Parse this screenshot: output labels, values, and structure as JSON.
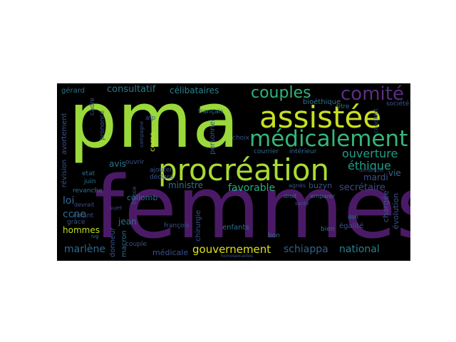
{
  "wordcloud": {
    "background": "#000000",
    "words": [
      {
        "text": "pma",
        "color": "#9ad93a"
      },
      {
        "text": "femmes",
        "color": "#4b1a66"
      },
      {
        "text": "procréation",
        "color": "#a9db33"
      },
      {
        "text": "assistée",
        "color": "#c8e020"
      },
      {
        "text": "médicalement",
        "color": "#35b779"
      },
      {
        "text": "comité",
        "color": "#5a2f7f"
      },
      {
        "text": "couples",
        "color": "#2fb47c"
      },
      {
        "text": "ouverture",
        "color": "#1f9e89"
      },
      {
        "text": "éthique",
        "color": "#1f9e89"
      },
      {
        "text": "schiappa",
        "color": "#34618d"
      },
      {
        "text": "national",
        "color": "#26828e"
      },
      {
        "text": "gouvernement",
        "color": "#dce319"
      },
      {
        "text": "favorable",
        "color": "#26ad81"
      },
      {
        "text": "consultatif",
        "color": "#2a788e"
      },
      {
        "text": "célibataires",
        "color": "#26828e"
      },
      {
        "text": "secrétaire",
        "color": "#3e4a89"
      },
      {
        "text": "marlène",
        "color": "#31688e"
      },
      {
        "text": "avis",
        "color": "#2a788e"
      },
      {
        "text": "mardi",
        "color": "#3b528b"
      },
      {
        "text": "vie",
        "color": "#31688e"
      },
      {
        "text": "hommes",
        "color": "#c2df23"
      },
      {
        "text": "ccne",
        "color": "#31688e"
      },
      {
        "text": "loi",
        "color": "#31688e"
      },
      {
        "text": "jean",
        "color": "#2c728e"
      },
      {
        "text": "ministre",
        "color": "#2c728e"
      },
      {
        "text": "collomb",
        "color": "#2d708e"
      },
      {
        "text": "buzyn",
        "color": "#3b528b"
      },
      {
        "text": "agnès",
        "color": "#3b528b"
      },
      {
        "text": "égalité",
        "color": "#3b528b"
      },
      {
        "text": "bien",
        "color": "#2c728e"
      },
      {
        "text": "évolution",
        "color": "#3b528b"
      },
      {
        "text": "chargée",
        "color": "#3b528b"
      },
      {
        "text": "enfants",
        "color": "#2d708e"
      },
      {
        "text": "chirurgie",
        "color": "#3b528b"
      },
      {
        "text": "médicale",
        "color": "#3b528b"
      },
      {
        "text": "macron",
        "color": "#2d708e"
      },
      {
        "text": "donneur",
        "color": "#3b528b"
      },
      {
        "text": "bioéthique",
        "color": "#2c728e"
      },
      {
        "text": "français",
        "color": "#2c728e"
      },
      {
        "text": "personnel",
        "color": "#3b528b"
      },
      {
        "text": "révision",
        "color": "#3b528b"
      },
      {
        "text": "avortement",
        "color": "#3b528b"
      },
      {
        "text": "gérard",
        "color": "#2c728e"
      },
      {
        "text": "cadre",
        "color": "#3b528b"
      },
      {
        "text": "prononcé",
        "color": "#3b528b"
      },
      {
        "text": "courrier",
        "color": "#31688e"
      },
      {
        "text": "intérieur",
        "color": "#31688e"
      },
      {
        "text": "choix",
        "color": "#3b528b"
      },
      {
        "text": "titre",
        "color": "#2c728e"
      },
      {
        "text": "société",
        "color": "#3b528b"
      },
      {
        "text": "candidat",
        "color": "#3b528b"
      },
      {
        "text": "etat",
        "color": "#2c728e"
      },
      {
        "text": "juin",
        "color": "#2c728e"
      },
      {
        "text": "revanche",
        "color": "#2c728e"
      },
      {
        "text": "devrait",
        "color": "#3b528b"
      },
      {
        "text": "enfant",
        "color": "#3b528b"
      },
      {
        "text": "grâce",
        "color": "#3b528b"
      },
      {
        "text": "ouvrir",
        "color": "#3b528b"
      },
      {
        "text": "ajouter",
        "color": "#3b528b"
      },
      {
        "text": "déclaré",
        "color": "#3b528b"
      },
      {
        "text": "france",
        "color": "#3b528b"
      },
      {
        "text": "couple",
        "color": "#3b528b"
      },
      {
        "text": "françois",
        "color": "#3b528b"
      },
      {
        "text": "corps",
        "color": "#c8e020"
      },
      {
        "text": "afp",
        "color": "#3b528b"
      },
      {
        "text": "dimanche",
        "color": "#3b528b"
      },
      {
        "text": "droit",
        "color": "#2c728e"
      },
      {
        "text": "emparer",
        "color": "#2c728e"
      },
      {
        "text": "santé",
        "color": "#3b528b"
      },
      {
        "text": "bon",
        "color": "#2c728e"
      },
      {
        "text": "don",
        "color": "#2c728e"
      },
      {
        "text": "campagne",
        "color": "#3b528b"
      },
      {
        "text": "homosexuelles",
        "color": "#3b528b"
      },
      {
        "text": "ivg",
        "color": "#2c728e"
      },
      {
        "text": "sujet",
        "color": "#3b528b"
      }
    ]
  }
}
